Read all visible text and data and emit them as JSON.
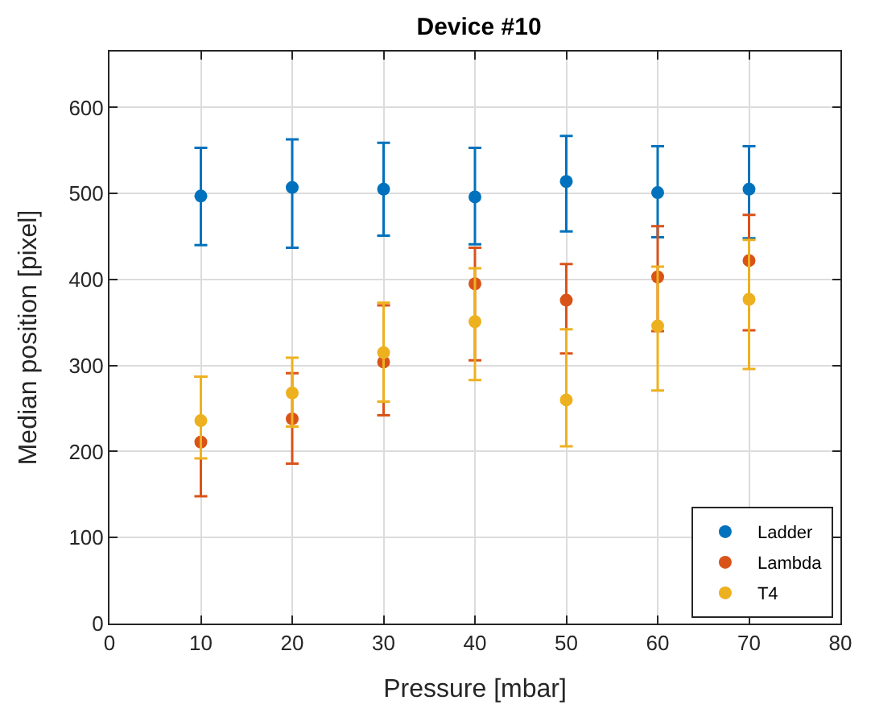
{
  "chart_data": {
    "type": "scatter",
    "title": "Device #10",
    "xlabel": "Pressure [mbar]",
    "ylabel": "Median position [pixel]",
    "x": [
      10,
      20,
      30,
      40,
      50,
      60,
      70
    ],
    "series": [
      {
        "name": "Ladder",
        "color": "#0072bd",
        "values": [
          497,
          507,
          505,
          496,
          514,
          501,
          505
        ],
        "errors": [
          [
            440,
            553
          ],
          [
            437,
            563
          ],
          [
            451,
            559
          ],
          [
            441,
            553
          ],
          [
            456,
            567
          ],
          [
            449,
            555
          ],
          [
            448,
            555
          ]
        ]
      },
      {
        "name": "Lambda",
        "color": "#d95319",
        "values": [
          211,
          238,
          304,
          395,
          376,
          403,
          422
        ],
        "errors": [
          [
            148,
            287
          ],
          [
            186,
            291
          ],
          [
            242,
            370
          ],
          [
            306,
            437
          ],
          [
            314,
            418
          ],
          [
            340,
            462
          ],
          [
            341,
            475
          ]
        ]
      },
      {
        "name": "T4",
        "color": "#edb120",
        "values": [
          236,
          268,
          315,
          351,
          260,
          346,
          377
        ],
        "errors": [
          [
            192,
            287
          ],
          [
            229,
            309
          ],
          [
            258,
            373
          ],
          [
            283,
            413
          ],
          [
            206,
            342
          ],
          [
            271,
            415
          ],
          [
            296,
            446
          ]
        ]
      }
    ],
    "xlim": [
      0,
      80
    ],
    "xticks": [
      0,
      10,
      20,
      30,
      40,
      50,
      60,
      70,
      80
    ],
    "ylim": [
      0,
      665
    ],
    "yticks": [
      0,
      100,
      200,
      300,
      400,
      500,
      600
    ],
    "grid": true,
    "legend": "bottom right",
    "marker": "circle"
  }
}
